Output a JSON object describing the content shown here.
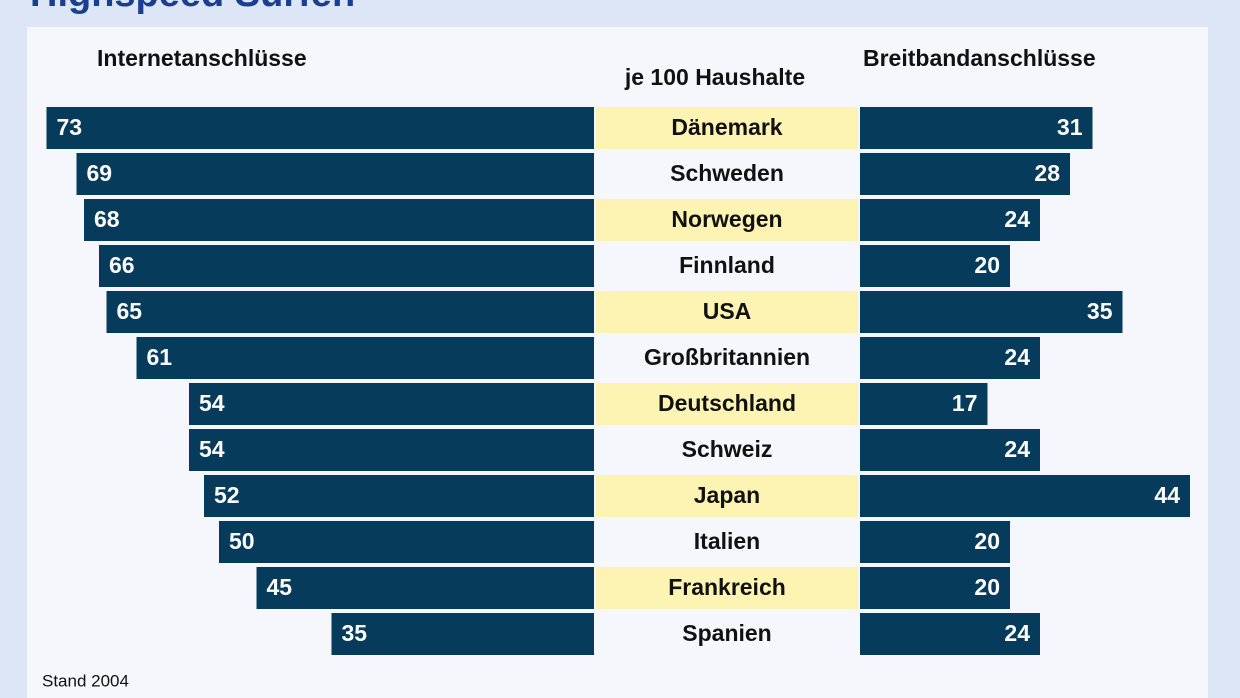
{
  "chart_data": {
    "type": "butterfly",
    "title": "Highspeed Surfen",
    "subtitle": "je 100 Haushalte",
    "note": "Stand 2004",
    "categories": [
      "Dänemark",
      "Schweden",
      "Norwegen",
      "Finnland",
      "USA",
      "Großbritannien",
      "Deutschland",
      "Schweiz",
      "Japan",
      "Italien",
      "Frankreich",
      "Spanien"
    ],
    "series": [
      {
        "name": "Internetanschlüsse",
        "color": "#073b5c",
        "values": [
          73,
          69,
          68,
          66,
          65,
          61,
          54,
          54,
          52,
          50,
          45,
          35
        ]
      },
      {
        "name": "Breitbandanschlüsse",
        "color": "#073b5c",
        "values": [
          31,
          28,
          24,
          20,
          35,
          24,
          17,
          24,
          44,
          20,
          20,
          24
        ]
      }
    ],
    "highlight_color": "#fdf3b3"
  }
}
